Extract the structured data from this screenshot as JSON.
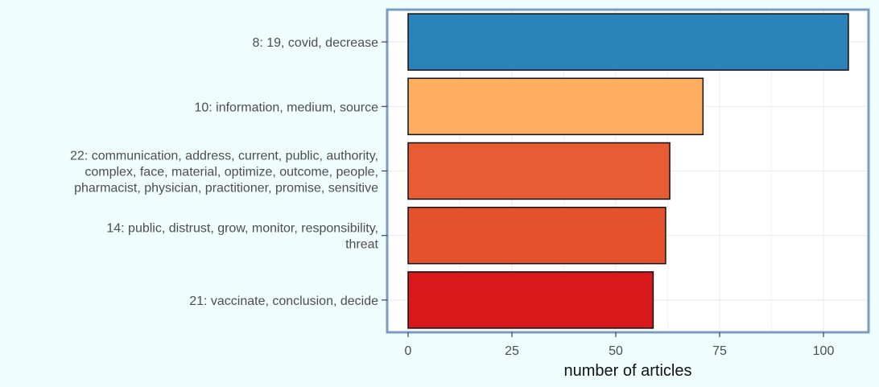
{
  "chart_data": {
    "type": "bar",
    "orientation": "horizontal",
    "title": "",
    "xlabel": "number of articles",
    "ylabel": "",
    "xlim": [
      0,
      110
    ],
    "xticks": [
      0,
      25,
      50,
      75,
      100
    ],
    "grid": true,
    "legend": "none",
    "categories": [
      {
        "label_lines": [
          "8: 19, covid, decrease"
        ],
        "value": 106,
        "color": "#2b83ba"
      },
      {
        "label_lines": [
          "10: information, medium, source"
        ],
        "value": 71,
        "color": "#fdae61"
      },
      {
        "label_lines": [
          "22: communication, address, current, public, authority,",
          "complex, face, material, optimize, outcome, people,",
          "pharmacist, physician, practitioner, promise, sensitive"
        ],
        "value": 63,
        "color": "#e75c33"
      },
      {
        "label_lines": [
          "14: public, distrust, grow, monitor, responsibility,",
          "threat"
        ],
        "value": 62,
        "color": "#e4512d"
      },
      {
        "label_lines": [
          "21: vaccinate, conclusion, decide"
        ],
        "value": 59,
        "color": "#d7191c"
      }
    ],
    "colors": {
      "background": "#f0fdff",
      "panel": "#ffffff",
      "panel_border": "#7b9cc0",
      "grid": "#ebebeb",
      "bar_outline": "#111111",
      "text": "#4d4d4d",
      "axis_title": "#111111"
    }
  }
}
